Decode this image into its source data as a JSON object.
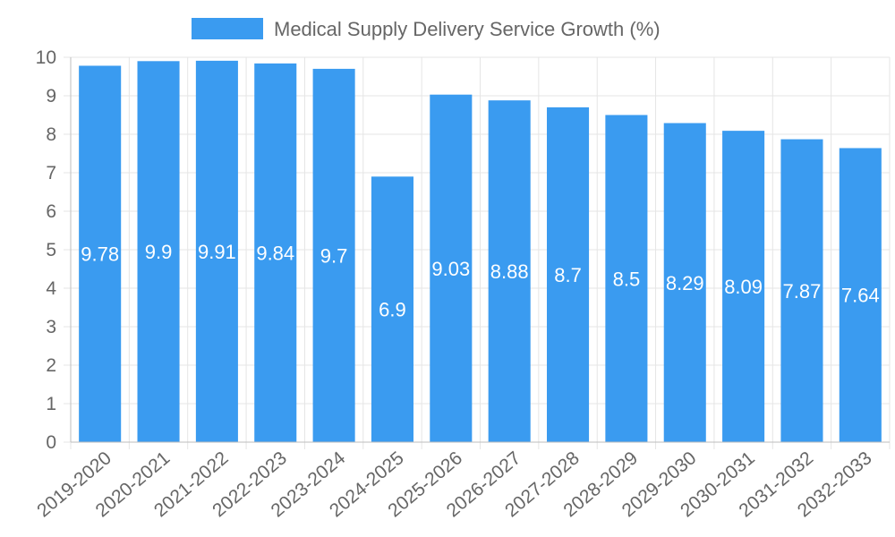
{
  "chart_data": {
    "type": "bar",
    "title": "",
    "xlabel": "",
    "ylabel": "",
    "legend_position": "top-center",
    "ylim": [
      0,
      10
    ],
    "yticks": [
      0,
      1,
      2,
      3,
      4,
      5,
      6,
      7,
      8,
      9,
      10
    ],
    "grid": true,
    "categories": [
      "2019-2020",
      "2020-2021",
      "2021-2022",
      "2022-2023",
      "2023-2024",
      "2024-2025",
      "2025-2026",
      "2026-2027",
      "2027-2028",
      "2028-2029",
      "2029-2030",
      "2030-2031",
      "2031-2032",
      "2032-2033"
    ],
    "series": [
      {
        "name": "Medical Supply Delivery Service Growth (%)",
        "color": "#3a9bf0",
        "values": [
          9.78,
          9.9,
          9.91,
          9.84,
          9.7,
          6.9,
          9.03,
          8.88,
          8.7,
          8.5,
          8.29,
          8.09,
          7.87,
          7.64
        ],
        "labels": [
          "9.78",
          "9.9",
          "9.91",
          "9.84",
          "9.7",
          "6.9",
          "9.03",
          "8.88",
          "8.7",
          "8.5",
          "8.29",
          "8.09",
          "7.87",
          "7.64"
        ]
      }
    ]
  }
}
